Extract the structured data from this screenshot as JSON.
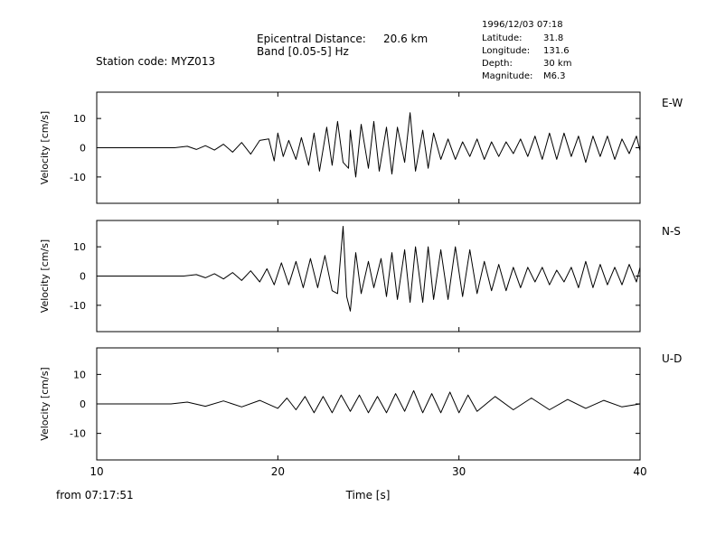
{
  "header": {
    "station": "Station code: MYZ013",
    "epi_label": "Epicentral Distance:",
    "epi_value": "20.6 km",
    "band": "Band [0.05-5] Hz",
    "date": "1996/12/03 07:18",
    "lat_label": "Latitude:",
    "lat_value": "31.8",
    "lon_label": "Longitude:",
    "lon_value": "131.6",
    "depth_label": "Depth:",
    "depth_value": "30 km",
    "mag_label": "Magnitude:",
    "mag_value": "M6.3"
  },
  "footer": {
    "from": "from 07:17:51"
  },
  "chart_data": [
    {
      "type": "line",
      "component": "E-W",
      "ylabel": "Velocity [cm/s]",
      "xlabel": "Time [s]",
      "xlim": [
        10,
        40
      ],
      "ylim": [
        -19,
        19
      ],
      "xticks": [
        10,
        20,
        30,
        40
      ],
      "yticks": [
        10,
        0,
        -10
      ],
      "x": [
        14.3,
        15,
        15.5,
        16,
        16.5,
        17,
        17.5,
        18,
        18.5,
        19,
        19.5,
        19.8,
        20,
        20.3,
        20.6,
        21,
        21.3,
        21.7,
        22,
        22.3,
        22.7,
        23,
        23.3,
        23.6,
        23.9,
        24,
        24.3,
        24.6,
        25,
        25.3,
        25.6,
        26,
        26.3,
        26.6,
        27,
        27.3,
        27.6,
        28,
        28.3,
        28.6,
        29,
        29.4,
        29.8,
        30.2,
        30.6,
        31,
        31.4,
        31.8,
        32.2,
        32.6,
        33,
        33.4,
        33.8,
        34.2,
        34.6,
        35,
        35.4,
        35.8,
        36.2,
        36.6,
        37,
        37.4,
        37.8,
        38.2,
        38.6,
        39,
        39.4,
        39.8,
        40
      ],
      "values": [
        0,
        0.5,
        -0.6,
        0.7,
        -0.8,
        1.2,
        -1.5,
        1.8,
        -2.2,
        2.5,
        3,
        -4.5,
        5,
        -3,
        2.5,
        -4,
        3.5,
        -6,
        5,
        -8,
        7,
        -6,
        9,
        -5,
        -7,
        6,
        -10,
        8,
        -7,
        9,
        -8,
        7,
        -9,
        7,
        -5,
        12,
        -8,
        6,
        -7,
        5,
        -4,
        3,
        -4,
        2,
        -3,
        3,
        -4,
        2,
        -3,
        2,
        -2,
        3,
        -3,
        4,
        -4,
        5,
        -4,
        5,
        -3,
        4,
        -5,
        4,
        -3,
        4,
        -4,
        3,
        -2,
        4,
        -1
      ]
    },
    {
      "type": "line",
      "component": "N-S",
      "ylabel": "Velocity [cm/s]",
      "xlabel": "Time [s]",
      "xlim": [
        10,
        40
      ],
      "ylim": [
        -19,
        19
      ],
      "xticks": [
        10,
        20,
        30,
        40
      ],
      "yticks": [
        10,
        0,
        -10
      ],
      "x": [
        14.8,
        15.5,
        16,
        16.5,
        17,
        17.5,
        18,
        18.5,
        19,
        19.4,
        19.8,
        20.2,
        20.6,
        21,
        21.4,
        21.8,
        22.2,
        22.6,
        23,
        23.3,
        23.6,
        23.8,
        24,
        24.3,
        24.6,
        25,
        25.3,
        25.7,
        26,
        26.3,
        26.6,
        27,
        27.3,
        27.6,
        28,
        28.3,
        28.6,
        29,
        29.4,
        29.8,
        30.2,
        30.6,
        31,
        31.4,
        31.8,
        32.2,
        32.6,
        33,
        33.4,
        33.8,
        34.2,
        34.6,
        35,
        35.4,
        35.8,
        36.2,
        36.6,
        37,
        37.4,
        37.8,
        38.2,
        38.6,
        39,
        39.4,
        39.8,
        40
      ],
      "values": [
        0,
        0.5,
        -0.6,
        0.8,
        -1,
        1.2,
        -1.5,
        1.8,
        -2,
        2.5,
        -3,
        4.5,
        -3,
        5,
        -4,
        6,
        -4,
        7,
        -5,
        -6,
        17,
        -7,
        -12,
        8,
        -6,
        5,
        -4,
        6,
        -7,
        8,
        -8,
        9,
        -9,
        10,
        -9,
        10,
        -8,
        9,
        -8,
        10,
        -7,
        9,
        -6,
        5,
        -5,
        4,
        -5,
        3,
        -4,
        3,
        -2,
        3,
        -3,
        2,
        -2,
        3,
        -4,
        5,
        -4,
        4,
        -3,
        3,
        -3,
        4,
        -2,
        3
      ]
    },
    {
      "type": "line",
      "component": "U-D",
      "ylabel": "Velocity [cm/s]",
      "xlabel": "Time [s]",
      "xlim": [
        10,
        40
      ],
      "ylim": [
        -19,
        19
      ],
      "xticks": [
        10,
        20,
        30,
        40
      ],
      "yticks": [
        10,
        0,
        -10
      ],
      "x": [
        14.1,
        15,
        16,
        17,
        18,
        19,
        20,
        20.5,
        21,
        21.5,
        22,
        22.5,
        23,
        23.5,
        24,
        24.5,
        25,
        25.5,
        26,
        26.5,
        27,
        27.5,
        28,
        28.5,
        29,
        29.5,
        30,
        30.5,
        31,
        32,
        33,
        34,
        35,
        36,
        37,
        38,
        39,
        40
      ],
      "values": [
        0,
        0.6,
        -0.8,
        1,
        -1,
        1.2,
        -1.5,
        2,
        -2,
        2.5,
        -3,
        2.5,
        -3,
        3,
        -2.5,
        3,
        -3,
        2.5,
        -3,
        3.5,
        -2.5,
        4.5,
        -3,
        3.5,
        -3,
        4,
        -3,
        3,
        -2.5,
        2.5,
        -2,
        2,
        -2,
        1.5,
        -1.5,
        1.2,
        -1,
        0
      ]
    }
  ]
}
